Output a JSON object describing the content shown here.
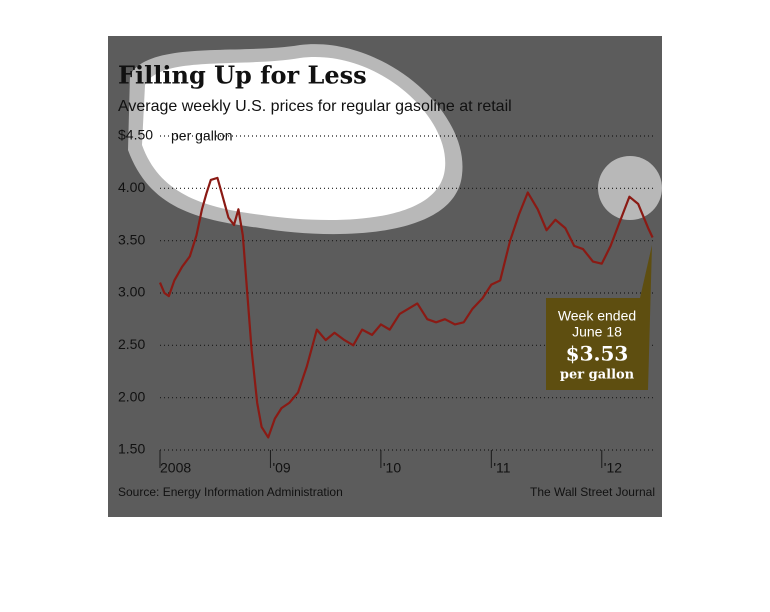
{
  "chart_data": {
    "type": "line",
    "title": "Filling Up for Less",
    "subtitle": "Average weekly U.S. prices for regular gasoline at retail",
    "y_unit": "per gallon",
    "source": "Source: Energy Information Administration",
    "credit": "The Wall Street Journal",
    "annotation": {
      "lines": [
        "Week ended",
        "June 18"
      ],
      "value_label": "$3.53",
      "unit": "per gallon"
    },
    "xlim": [
      2008,
      2012.5
    ],
    "xticks": [
      {
        "value": 2008,
        "label": "2008"
      },
      {
        "value": 2009,
        "label": "'09"
      },
      {
        "value": 2010,
        "label": "'10"
      },
      {
        "value": 2011,
        "label": "'11"
      },
      {
        "value": 2012,
        "label": "'12"
      }
    ],
    "ylim": [
      1.5,
      4.5
    ],
    "yticks": [
      {
        "value": 1.5,
        "label": "1.50"
      },
      {
        "value": 2,
        "label": "2.00"
      },
      {
        "value": 2.5,
        "label": "2.50"
      },
      {
        "value": 3,
        "label": "3.00"
      },
      {
        "value": 3.5,
        "label": "3.50"
      },
      {
        "value": 4,
        "label": "4.00"
      },
      {
        "value": 4.5,
        "label": "$4.50"
      }
    ],
    "grid": true,
    "series": [
      {
        "color": "#8a1a14",
        "x": [
          2008.0,
          2008.04,
          2008.08,
          2008.13,
          2008.2,
          2008.27,
          2008.33,
          2008.38,
          2008.42,
          2008.46,
          2008.52,
          2008.56,
          2008.62,
          2008.67,
          2008.71,
          2008.75,
          2008.79,
          2008.83,
          2008.88,
          2008.92,
          2008.98,
          2009.04,
          2009.1,
          2009.17,
          2009.25,
          2009.33,
          2009.42,
          2009.5,
          2009.58,
          2009.67,
          2009.75,
          2009.83,
          2009.92,
          2010.0,
          2010.08,
          2010.17,
          2010.25,
          2010.33,
          2010.42,
          2010.5,
          2010.58,
          2010.67,
          2010.75,
          2010.83,
          2010.92,
          2011.0,
          2011.08,
          2011.17,
          2011.25,
          2011.33,
          2011.42,
          2011.5,
          2011.58,
          2011.67,
          2011.75,
          2011.83,
          2011.92,
          2012.0,
          2012.08,
          2012.17,
          2012.25,
          2012.33,
          2012.42,
          2012.46
        ],
        "values": [
          3.1,
          3.0,
          2.97,
          3.12,
          3.25,
          3.35,
          3.55,
          3.8,
          3.95,
          4.08,
          4.1,
          3.95,
          3.72,
          3.65,
          3.8,
          3.55,
          3.0,
          2.45,
          1.95,
          1.72,
          1.62,
          1.8,
          1.9,
          1.95,
          2.05,
          2.3,
          2.65,
          2.55,
          2.62,
          2.55,
          2.5,
          2.65,
          2.6,
          2.7,
          2.65,
          2.8,
          2.85,
          2.9,
          2.75,
          2.72,
          2.75,
          2.7,
          2.72,
          2.85,
          2.95,
          3.08,
          3.12,
          3.5,
          3.75,
          3.96,
          3.8,
          3.6,
          3.7,
          3.62,
          3.45,
          3.42,
          3.3,
          3.28,
          3.45,
          3.7,
          3.92,
          3.85,
          3.62,
          3.53
        ]
      }
    ]
  }
}
